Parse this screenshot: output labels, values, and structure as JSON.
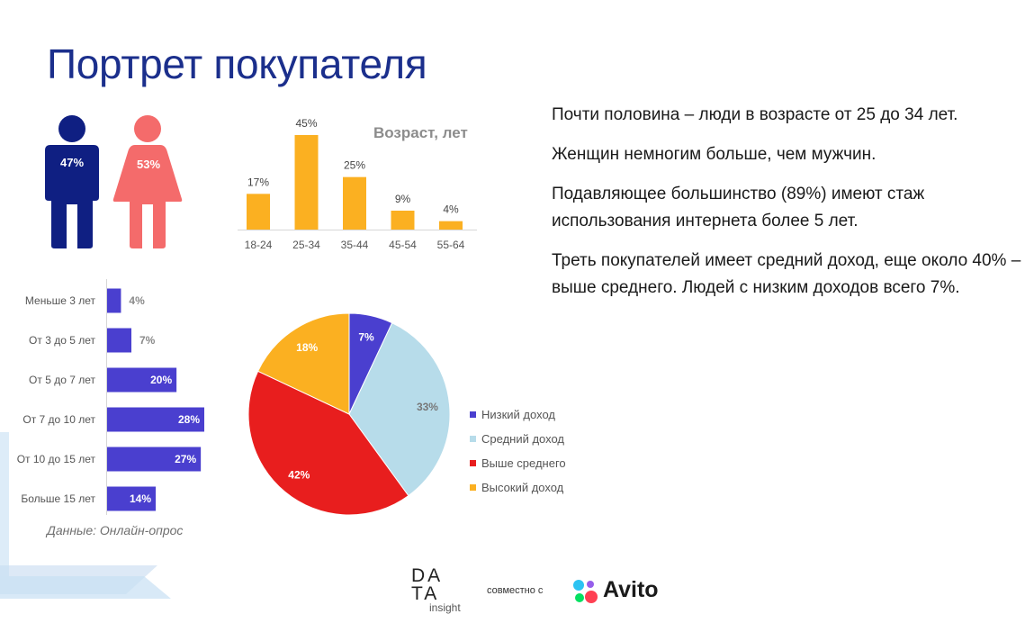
{
  "title": "Портрет покупателя",
  "gender": {
    "male_pct": "47%",
    "female_pct": "53%",
    "male_color": "#0f1f82",
    "female_color": "#f46b6b"
  },
  "colors": {
    "title": "#1b2f8c",
    "age_bars": "#fbb021",
    "experience_bars": "#4a3fcf",
    "pie_low": "#4a3fcf",
    "pie_mid": "#b7dcea",
    "pie_above": "#e81e1e",
    "pie_high": "#fbb021"
  },
  "chart_data": [
    {
      "type": "bar",
      "title": "Возраст, лет",
      "categories": [
        "18-24",
        "25-34",
        "35-44",
        "45-54",
        "55-64"
      ],
      "values": [
        17,
        45,
        25,
        9,
        4
      ],
      "labels": [
        "17%",
        "45%",
        "25%",
        "9%",
        "4%"
      ],
      "ylim": [
        0,
        45
      ],
      "grid": false
    },
    {
      "type": "bar",
      "orientation": "horizontal",
      "categories": [
        "Меньше 3 лет",
        "От 3 до 5 лет",
        "От 5 до 7 лет",
        "От 7 до 10 лет",
        "От 10 до 15 лет",
        "Больше 15 лет"
      ],
      "values": [
        4,
        7,
        20,
        28,
        27,
        14
      ],
      "labels": [
        "4%",
        "7%",
        "20%",
        "28%",
        "27%",
        "14%"
      ],
      "xlim": [
        0,
        28
      ],
      "grid": false
    },
    {
      "type": "pie",
      "categories": [
        "Низкий доход",
        "Средний доход",
        "Выше среднего",
        "Высокий доход"
      ],
      "values": [
        7,
        33,
        42,
        18
      ],
      "labels": [
        "7%",
        "33%",
        "42%",
        "18%"
      ],
      "legend": "right"
    }
  ],
  "notes": [
    "Почти половина – люди в возрасте от 25 до 34 лет.",
    "Женщин немногим больше, чем мужчин.",
    "Подавляющее большинство (89%) имеют стаж использования интернета более 5 лет.",
    "Треть покупателей имеет средний доход, еще около 40% – выше среднего. Людей с низким доходов всего 7%."
  ],
  "source": "Данные: Онлайн-опрос",
  "footer": {
    "data_logo_line1": "DATA",
    "data_logo_line1a": "DA",
    "data_logo_line1b": "TA",
    "data_logo_line2": "insight",
    "joint_text": "совместно с",
    "avito_text": "Avito"
  }
}
